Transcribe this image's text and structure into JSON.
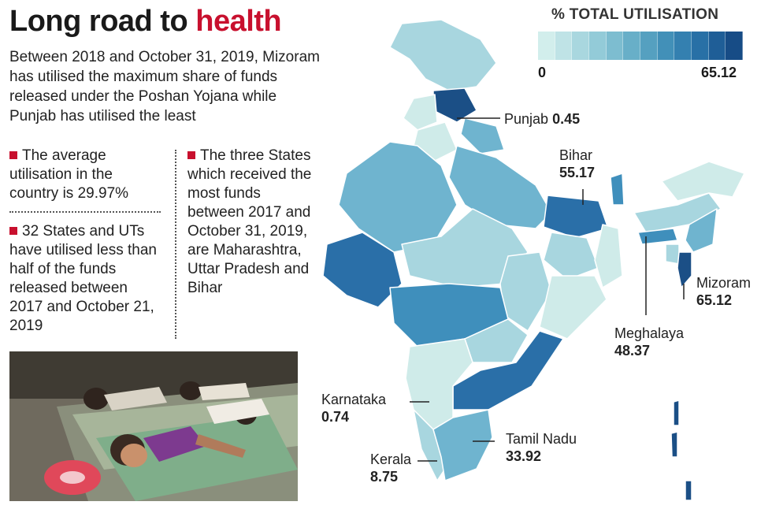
{
  "title": {
    "part1": "Long road to ",
    "part2": "health"
  },
  "intro": "Between 2018 and October 31, 2019, Mizoram has utilised the maximum share of funds released under the Poshan Yojana while Punjab has utilised the least",
  "bullets": {
    "average": "The average utilisation in the country is 29.97%",
    "states_count": "32 States and UTs have utilised less than half of the funds released between 2017 and October 21, 2019",
    "top_states": "The three States which received the most funds between 2017 and October 31, 2019, are Maharashtra, Uttar Pradesh and Bihar"
  },
  "legend": {
    "title": "% TOTAL UTILISATION",
    "min": "0",
    "max": "65.12",
    "colors": [
      "#d2eeec",
      "#bfe3e6",
      "#a9d7df",
      "#93cbd8",
      "#7dbdd0",
      "#68afc8",
      "#55a0c0",
      "#4290b8",
      "#3480b0",
      "#2870a6",
      "#1f5e97",
      "#174c86"
    ]
  },
  "map_colors": {
    "lightest": "#cfebe9",
    "light": "#a8d6df",
    "mid": "#6fb4cf",
    "midDark": "#3f8fbc",
    "dark": "#2a6fa8",
    "darkest": "#1b4f86",
    "border": "#ffffff"
  },
  "labels": {
    "punjab": {
      "name": "Punjab",
      "value": "0.45"
    },
    "bihar": {
      "name": "Bihar",
      "value": "55.17"
    },
    "mizoram": {
      "name": "Mizoram",
      "value": "65.12"
    },
    "meghalaya": {
      "name": "Meghalaya",
      "value": "48.37"
    },
    "karnataka": {
      "name": "Karnataka",
      "value": "0.74"
    },
    "tamil_nadu": {
      "name": "Tamil Nadu",
      "value": "33.92"
    },
    "kerala": {
      "name": "Kerala",
      "value": "8.75"
    }
  }
}
